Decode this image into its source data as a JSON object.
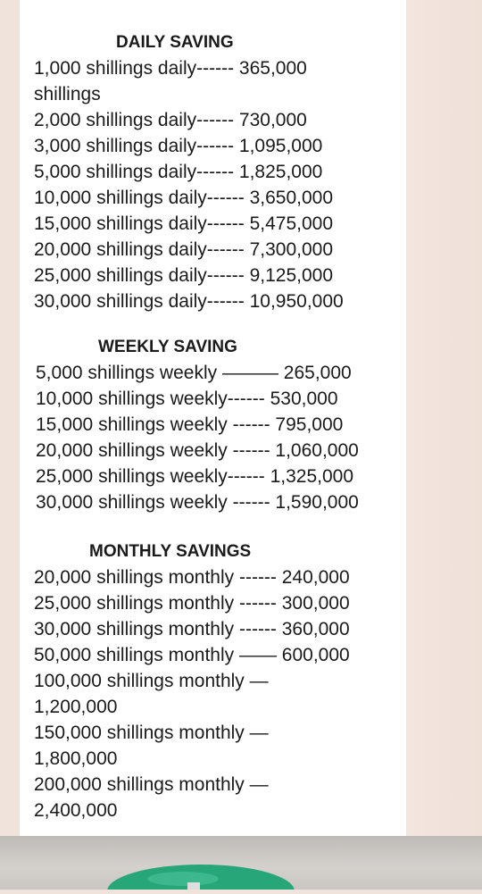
{
  "daily": {
    "title": "DAILY SAVING",
    "lines": [
      "1,000 shillings daily------ 365,000 shillings",
      "2,000 shillings daily------ 730,000",
      "3,000 shillings daily------ 1,095,000",
      "5,000 shillings daily------ 1,825,000",
      "10,000 shillings daily------ 3,650,000",
      "15,000 shillings daily------ 5,475,000",
      "20,000 shillings  daily------ 7,300,000",
      "25,000 shillings daily------ 9,125,000",
      "30,000 shillings daily------ 10,950,000"
    ]
  },
  "weekly": {
    "title": "WEEKLY SAVING",
    "lines": [
      "5,000 shillings weekly ——— 265,000",
      "10,000 shillings weekly------ 530,000",
      "15,000 shillings weekly ------ 795,000",
      "20,000 shillings weekly ------ 1,060,000",
      "25,000 shillings weekly------ 1,325,000",
      "30,000 shillings weekly ------ 1,590,000"
    ]
  },
  "monthly": {
    "title": "MONTHLY SAVINGS",
    "lines": [
      "20,000 shillings monthly ------ 240,000",
      "25,000 shillings monthly ------ 300,000",
      "30,000 shillings monthly ------ 360,000",
      "50,000 shillings monthly —— 600,000",
      "100,000 shillings monthly — 1,200,000",
      "150,000 shillings monthly — 1,800,000",
      "200,000 shillings monthly — 2,400,000"
    ]
  }
}
